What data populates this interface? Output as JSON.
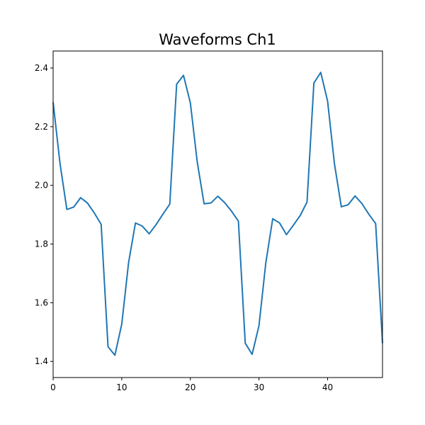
{
  "chart_data": {
    "type": "line",
    "title": "Waveforms Ch1",
    "xlabel": "",
    "ylabel": "",
    "xlim": [
      0,
      48
    ],
    "ylim": [
      1.345,
      2.458
    ],
    "x_ticks": [
      0,
      10,
      20,
      30,
      40
    ],
    "y_ticks": [
      1.4,
      1.6,
      1.8,
      2.0,
      2.2,
      2.4
    ],
    "x_tick_labels": [
      "0",
      "10",
      "20",
      "30",
      "40"
    ],
    "y_tick_labels": [
      "1.4",
      "1.6",
      "1.8",
      "2.0",
      "2.2",
      "2.4"
    ],
    "grid": false,
    "legend": "none",
    "series": [
      {
        "color": "#1f77b4",
        "x": [
          0,
          1,
          2,
          3,
          4,
          5,
          6,
          7,
          8,
          9,
          10,
          11,
          12,
          13,
          14,
          15,
          16,
          17,
          18,
          19,
          20,
          21,
          22,
          23,
          24,
          25,
          26,
          27,
          28,
          29,
          30,
          31,
          32,
          33,
          34,
          35,
          36,
          37,
          38,
          39,
          40,
          41,
          42,
          43,
          44,
          45,
          46,
          47,
          48
        ],
        "y": [
          2.283,
          2.075,
          1.918,
          1.926,
          1.958,
          1.94,
          1.906,
          1.867,
          1.45,
          1.421,
          1.527,
          1.737,
          1.872,
          1.861,
          1.835,
          1.866,
          1.902,
          1.936,
          2.345,
          2.375,
          2.281,
          2.08,
          1.937,
          1.94,
          1.963,
          1.941,
          1.912,
          1.878,
          1.462,
          1.424,
          1.522,
          1.737,
          1.886,
          1.872,
          1.832,
          1.864,
          1.897,
          1.943,
          2.349,
          2.385,
          2.287,
          2.073,
          1.927,
          1.934,
          1.964,
          1.938,
          1.902,
          1.87,
          1.462
        ]
      }
    ]
  }
}
